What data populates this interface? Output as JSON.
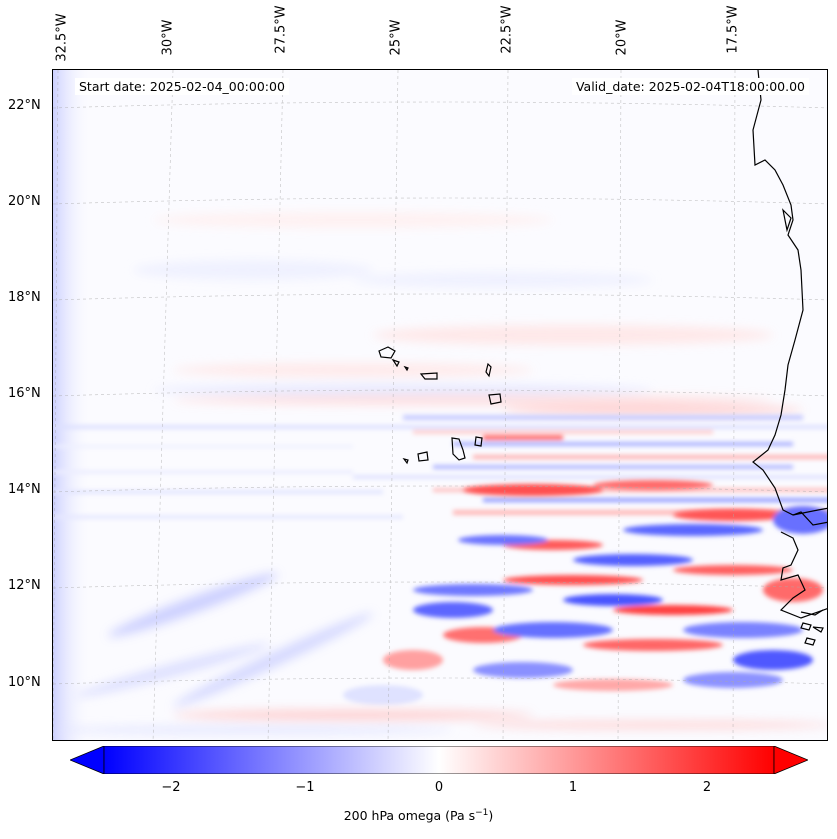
{
  "map": {
    "start_label": "Start date: 2025-02-04_00:00:00",
    "valid_label": "Valid_date: 2025-02-04T18:00:00.00",
    "lon_labels": [
      "32.5°W",
      "30°W",
      "27.5°W",
      "25°W",
      "22.5°W",
      "20°W",
      "17.5°W"
    ],
    "lat_labels": [
      "22°N",
      "20°N",
      "18°N",
      "16°N",
      "14°N",
      "12°N",
      "10°N"
    ]
  },
  "colorbar": {
    "ticks": [
      "−2",
      "−1",
      "0",
      "1",
      "2"
    ],
    "title": "200 hPa omega (Pa s",
    "title_sup": "−1",
    "title_end": ")",
    "min_color": "#0000ff",
    "mid_color": "#ffffff",
    "max_color": "#ff0000"
  }
}
